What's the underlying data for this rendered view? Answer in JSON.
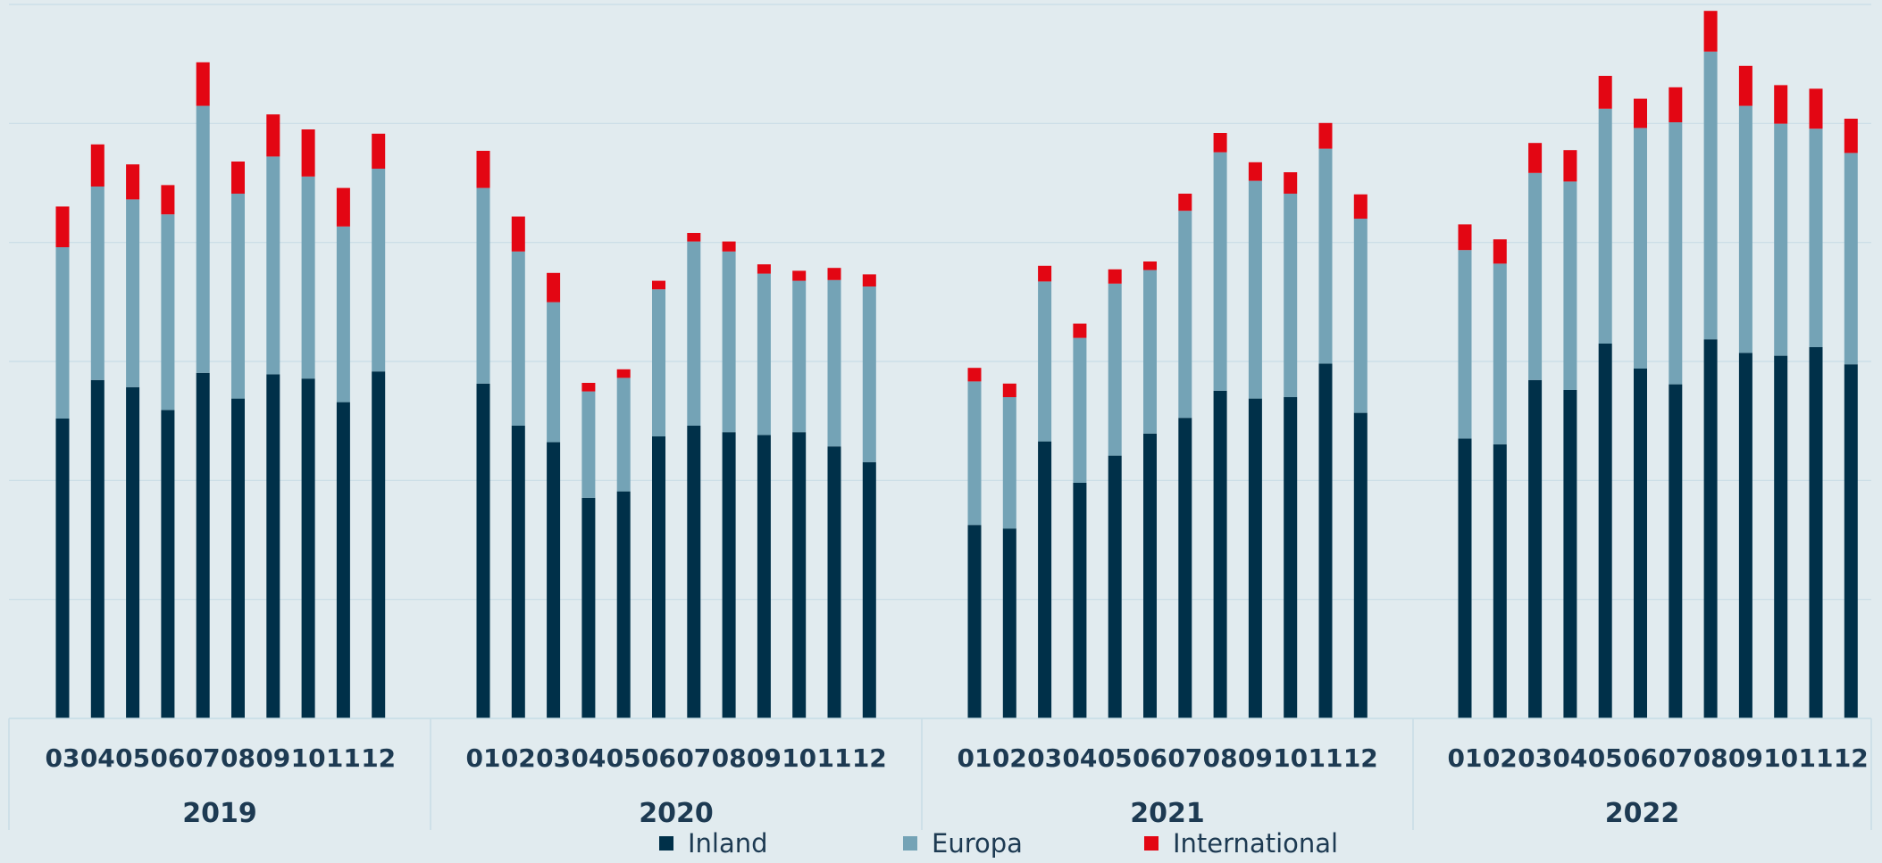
{
  "chart_data": {
    "type": "bar",
    "stacked": true,
    "grid": true,
    "legend_position": "bottom",
    "y_max": 100,
    "groups": [
      {
        "year": "2019",
        "months": [
          "03",
          "04",
          "05",
          "06",
          "07",
          "08",
          "09",
          "10",
          "11",
          "12"
        ],
        "series": {
          "Inland": [
            42.0,
            47.4,
            46.4,
            43.2,
            48.4,
            44.8,
            48.2,
            47.6,
            44.3,
            48.6
          ],
          "Europa": [
            24.0,
            27.1,
            26.3,
            27.4,
            37.4,
            28.7,
            30.5,
            28.3,
            24.6,
            28.4
          ],
          "International": [
            5.7,
            5.9,
            4.9,
            4.1,
            6.1,
            4.5,
            5.9,
            6.6,
            5.4,
            4.9
          ]
        }
      },
      {
        "year": "2020",
        "months": [
          "01",
          "02",
          "03",
          "04",
          "05",
          "06",
          "07",
          "08",
          "09",
          "10",
          "11",
          "12"
        ],
        "series": {
          "Inland": [
            46.9,
            41.0,
            38.7,
            30.9,
            31.8,
            39.5,
            41.0,
            40.1,
            39.7,
            40.1,
            38.1,
            35.9
          ],
          "Europa": [
            27.4,
            24.4,
            19.6,
            14.9,
            15.9,
            20.6,
            25.8,
            25.3,
            22.6,
            21.2,
            23.3,
            24.6
          ],
          "International": [
            5.2,
            4.9,
            4.1,
            1.2,
            1.2,
            1.2,
            1.2,
            1.4,
            1.3,
            1.4,
            1.7,
            1.7
          ]
        }
      },
      {
        "year": "2021",
        "months": [
          "01",
          "02",
          "03",
          "04",
          "05",
          "06",
          "07",
          "08",
          "09",
          "10",
          "11",
          "12"
        ],
        "series": {
          "Inland": [
            27.1,
            26.6,
            38.8,
            33.0,
            36.8,
            39.9,
            42.1,
            45.9,
            44.8,
            45.0,
            49.7,
            42.8
          ],
          "Europa": [
            20.1,
            18.4,
            22.4,
            20.3,
            24.1,
            22.9,
            29.0,
            33.4,
            30.5,
            28.5,
            30.1,
            27.2
          ],
          "International": [
            1.9,
            1.9,
            2.2,
            2.0,
            2.0,
            1.2,
            2.4,
            2.7,
            2.6,
            3.0,
            3.6,
            3.4
          ]
        }
      },
      {
        "year": "2022",
        "months": [
          "01",
          "02",
          "03",
          "04",
          "05",
          "06",
          "07",
          "08",
          "09",
          "10",
          "11",
          "12"
        ],
        "series": {
          "Inland": [
            39.2,
            38.4,
            47.4,
            46.0,
            52.5,
            49.0,
            46.8,
            53.1,
            51.2,
            50.8,
            52.0,
            49.6
          ],
          "Europa": [
            26.4,
            25.3,
            29.0,
            29.2,
            32.9,
            33.7,
            36.7,
            40.3,
            34.6,
            32.5,
            30.6,
            29.6
          ],
          "International": [
            3.6,
            3.4,
            4.2,
            4.4,
            4.6,
            4.1,
            4.9,
            5.7,
            5.6,
            5.4,
            5.6,
            4.8
          ]
        }
      }
    ],
    "legend": [
      {
        "name": "Inland",
        "color": "#003049"
      },
      {
        "name": "Europa",
        "color": "#74a3b6"
      },
      {
        "name": "International",
        "color": "#e30613"
      }
    ],
    "colors": {
      "background": "#e1ebef",
      "gridline": "#c8dde6",
      "axis_text": "#1d3a52"
    }
  }
}
